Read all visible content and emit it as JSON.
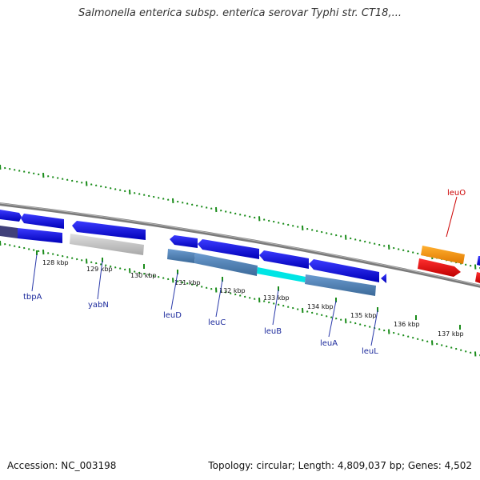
{
  "header": {
    "title": "Salmonella enterica subsp. enterica serovar Typhi str. CT18,..."
  },
  "footer": {
    "accession": "Accession: NC_003198",
    "summary": "Topology: circular; Length: 4,809,037 bp; Genes: 4,502"
  },
  "map": {
    "ticks": [
      {
        "label": "128 kbp"
      },
      {
        "label": "129 kbp"
      },
      {
        "label": "130 kbp"
      },
      {
        "label": "131 kbp"
      },
      {
        "label": "132 kbp"
      },
      {
        "label": "133 kbp"
      },
      {
        "label": "134 kbp"
      },
      {
        "label": "135 kbp"
      },
      {
        "label": "136 kbp"
      },
      {
        "label": "137 kbp"
      }
    ],
    "genes": [
      {
        "name": "tbpA"
      },
      {
        "name": "yabN"
      },
      {
        "name": "leuD"
      },
      {
        "name": "leuC"
      },
      {
        "name": "leuB"
      },
      {
        "name": "leuA"
      },
      {
        "name": "leuL"
      },
      {
        "name": "leuO"
      }
    ],
    "colors": {
      "cds": "#0000e6",
      "cds_dark": "#1a1a9e",
      "operon": "#4d7db3",
      "pseudo": "#bfbfbf",
      "highlight": "#00e5e5",
      "orange": "#ff9900",
      "red": "#ff0000",
      "backbone": "#808080",
      "gc_skew": "#1a8c1a"
    }
  }
}
